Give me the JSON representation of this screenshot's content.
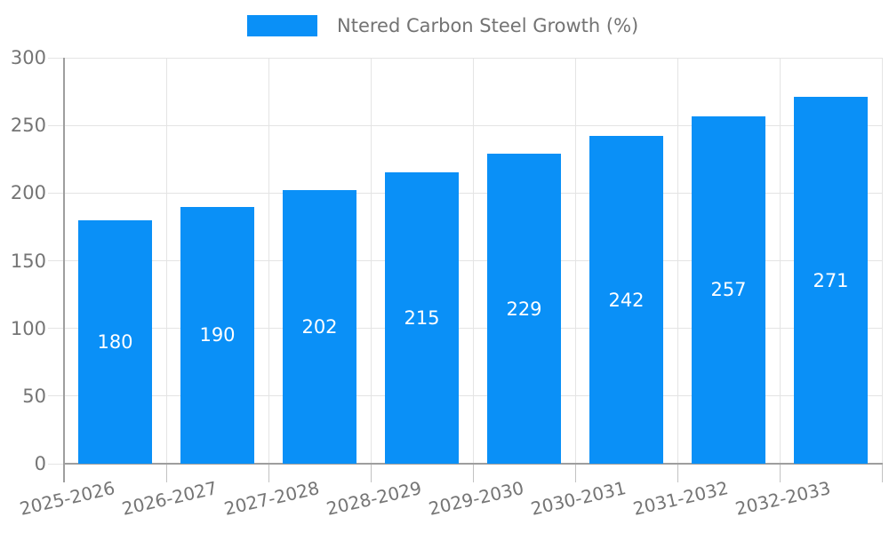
{
  "chart_data": {
    "type": "bar",
    "title": "",
    "legend": {
      "label": "Ntered Carbon Steel Growth (%)",
      "position": "top-center"
    },
    "categories": [
      "2025-2026",
      "2026-2027",
      "2027-2028",
      "2028-2029",
      "2029-2030",
      "2030-2031",
      "2031-2032",
      "2032-2033"
    ],
    "series": [
      {
        "name": "Ntered Carbon Steel Growth (%)",
        "values": [
          180,
          190,
          202,
          215,
          229,
          242,
          257,
          271
        ]
      }
    ],
    "bar_value_labels_visible": true,
    "xlabel": "",
    "ylabel": "",
    "ylim": [
      0,
      300
    ],
    "y_ticks": [
      0,
      50,
      100,
      150,
      200,
      250,
      300
    ],
    "grid": true,
    "x_tick_rotation_deg": -13,
    "colors": {
      "bar": "#0a90f7",
      "grid": "#e4e4e4",
      "axis": "#9e9e9e",
      "tick_label": "#757575",
      "bar_label": "#ffffff",
      "background": "#ffffff"
    }
  }
}
